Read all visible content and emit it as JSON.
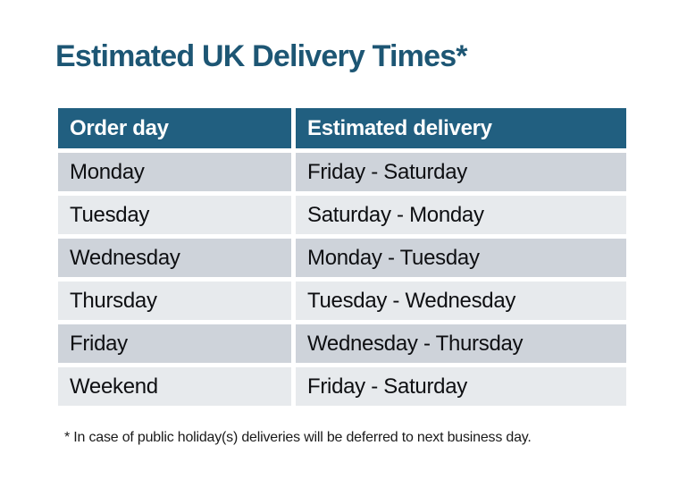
{
  "title": {
    "text": "Estimated UK Delivery Times*"
  },
  "table": {
    "header": {
      "columns": [
        "Order day",
        "Estimated delivery"
      ]
    },
    "rows": [
      {
        "order_day": "Monday",
        "estimated_delivery": "Friday - Saturday"
      },
      {
        "order_day": "Tuesday",
        "estimated_delivery": "Saturday - Monday"
      },
      {
        "order_day": "Wednesday",
        "estimated_delivery": "Monday - Tuesday"
      },
      {
        "order_day": "Thursday",
        "estimated_delivery": "Tuesday - Wednesday"
      },
      {
        "order_day": "Friday",
        "estimated_delivery": "Wednesday - Thursday"
      },
      {
        "order_day": "Weekend",
        "estimated_delivery": "Friday - Saturday"
      }
    ]
  },
  "footnote": {
    "text": "* In case of public holiday(s) deliveries will be deferred to next business day."
  },
  "colors": {
    "title_teal": "#1d5674",
    "header_teal": "#215f80",
    "header_text": "#ffffff",
    "row_dark": "#ced3da",
    "row_light": "#e7eaed",
    "cell_text": "#0e0f12",
    "background": "#ffffff"
  }
}
